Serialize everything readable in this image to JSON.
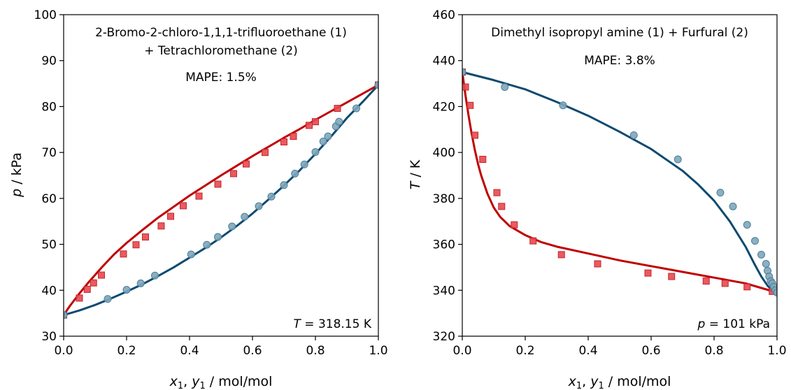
{
  "chart_data": [
    {
      "type": "scatter",
      "panel": "left",
      "title_lines": [
        "2-Bromo-2-chloro-1,1,1-trifluoroethane (1)",
        "+ Tetrachloromethane (2)"
      ],
      "metric": "MAPE: 1.5%",
      "condition": {
        "var": "T",
        "text": " = 318.15 K"
      },
      "xlabel": {
        "a": "x",
        "a_sub": "1",
        "sep": ", ",
        "b": "y",
        "b_sub": "1",
        "unit": " / mol/mol"
      },
      "ylabel": {
        "var": "p",
        "unit": " / kPa"
      },
      "xlim": [
        0,
        1
      ],
      "ylim": [
        30,
        100
      ],
      "xticks": [
        "0.0",
        "0.2",
        "0.4",
        "0.6",
        "0.8",
        "1.0"
      ],
      "yticks": [
        "30",
        "40",
        "50",
        "60",
        "70",
        "80",
        "90",
        "100"
      ],
      "ytick_values": [
        30,
        40,
        50,
        60,
        70,
        80,
        90,
        100
      ],
      "series": [
        {
          "kind": "line",
          "color": "#c00000",
          "x": [
            0,
            0.02,
            0.05,
            0.08,
            0.12,
            0.16,
            0.2,
            0.25,
            0.3,
            0.35,
            0.4,
            0.45,
            0.5,
            0.55,
            0.6,
            0.65,
            0.7,
            0.75,
            0.8,
            0.85,
            0.9,
            0.95,
            1.0
          ],
          "y": [
            34.6,
            36.6,
            39.3,
            41.8,
            44.9,
            47.8,
            50.3,
            53.1,
            55.8,
            58.2,
            60.6,
            62.8,
            65.0,
            67.1,
            69.2,
            71.2,
            73.2,
            75.1,
            77.1,
            79.0,
            80.9,
            82.8,
            84.7
          ]
        },
        {
          "kind": "line",
          "color": "#0d4a70",
          "x": [
            0,
            0.05,
            0.1,
            0.15,
            0.2,
            0.25,
            0.3,
            0.35,
            0.4,
            0.45,
            0.5,
            0.55,
            0.6,
            0.65,
            0.7,
            0.75,
            0.8,
            0.85,
            0.9,
            0.95,
            1.0
          ],
          "y": [
            34.6,
            35.6,
            36.8,
            38.2,
            39.7,
            41.3,
            43.1,
            45.0,
            47.1,
            49.2,
            51.5,
            54.0,
            56.7,
            59.7,
            62.8,
            66.1,
            69.7,
            73.5,
            77.5,
            81.0,
            84.7
          ]
        },
        {
          "kind": "marker",
          "shape": "square",
          "fill": "#e8484f",
          "stroke": "#c0282d",
          "x": [
            0.0,
            0.05,
            0.075,
            0.095,
            0.12,
            0.19,
            0.23,
            0.26,
            0.31,
            0.34,
            0.38,
            0.43,
            0.49,
            0.54,
            0.58,
            0.64,
            0.7,
            0.73,
            0.78,
            0.8,
            0.87,
            1.0
          ],
          "y": [
            34.6,
            38.3,
            40.2,
            41.6,
            43.3,
            47.9,
            49.9,
            51.6,
            54.0,
            56.1,
            58.4,
            60.5,
            63.1,
            65.4,
            67.5,
            70.0,
            72.3,
            73.5,
            75.9,
            76.7,
            79.6,
            84.7
          ]
        },
        {
          "kind": "marker",
          "shape": "circle",
          "fill": "#7fa6ba",
          "stroke": "#4b7f9a",
          "x": [
            0.0,
            0.14,
            0.2,
            0.245,
            0.29,
            0.405,
            0.455,
            0.49,
            0.535,
            0.575,
            0.62,
            0.66,
            0.7,
            0.735,
            0.765,
            0.8,
            0.825,
            0.84,
            0.865,
            0.875,
            0.93,
            1.0
          ],
          "y": [
            34.6,
            38.1,
            40.1,
            41.5,
            43.2,
            47.8,
            49.9,
            51.6,
            53.9,
            56.0,
            58.3,
            60.4,
            62.9,
            65.4,
            67.4,
            70.1,
            72.4,
            73.5,
            75.7,
            76.7,
            79.6,
            84.7
          ]
        }
      ]
    },
    {
      "type": "scatter",
      "panel": "right",
      "title_lines": [
        "Dimethyl isopropyl amine (1) + Furfural (2)"
      ],
      "metric": "MAPE: 3.8%",
      "condition": {
        "var": "p",
        "text": " = 101 kPa"
      },
      "xlabel": {
        "a": "x",
        "a_sub": "1",
        "sep": ", ",
        "b": "y",
        "b_sub": "1",
        "unit": " / mol/mol"
      },
      "ylabel": {
        "var": "T",
        "unit": " / K"
      },
      "xlim": [
        0,
        1
      ],
      "ylim": [
        320,
        460
      ],
      "xticks": [
        "0.0",
        "0.2",
        "0.4",
        "0.6",
        "0.8",
        "1.0"
      ],
      "yticks": [
        "320",
        "340",
        "360",
        "380",
        "400",
        "420",
        "440",
        "460"
      ],
      "ytick_values": [
        320,
        340,
        360,
        380,
        400,
        420,
        440,
        460
      ],
      "series": [
        {
          "kind": "line",
          "color": "#c00000",
          "x": [
            0,
            0.005,
            0.01,
            0.02,
            0.03,
            0.04,
            0.05,
            0.06,
            0.08,
            0.1,
            0.12,
            0.15,
            0.2,
            0.25,
            0.3,
            0.4,
            0.5,
            0.6,
            0.7,
            0.8,
            0.9,
            0.95,
            1.0
          ],
          "y": [
            435,
            430,
            425,
            416,
            408,
            401,
            395,
            390,
            382,
            376,
            372,
            368,
            364,
            361,
            359,
            356,
            353,
            350.5,
            348,
            345.5,
            343,
            341,
            339
          ]
        },
        {
          "kind": "line",
          "color": "#0d4a70",
          "x": [
            0,
            0.1,
            0.2,
            0.3,
            0.4,
            0.5,
            0.6,
            0.7,
            0.75,
            0.8,
            0.85,
            0.9,
            0.93,
            0.95,
            0.97,
            0.98,
            0.99,
            1.0
          ],
          "y": [
            435,
            431.5,
            427.5,
            422,
            416,
            409,
            401.5,
            392,
            386,
            379,
            370,
            359,
            351,
            346,
            342,
            340.5,
            339.5,
            339
          ]
        },
        {
          "kind": "marker",
          "shape": "square",
          "fill": "#e8484f",
          "stroke": "#c0282d",
          "x": [
            0.0,
            0.01,
            0.025,
            0.04,
            0.065,
            0.11,
            0.125,
            0.165,
            0.225,
            0.315,
            0.43,
            0.59,
            0.665,
            0.775,
            0.835,
            0.905,
            0.985
          ],
          "y": [
            435,
            428.5,
            420.5,
            407.5,
            397,
            382.5,
            376.5,
            368.5,
            361.5,
            355.5,
            351.5,
            347.5,
            346,
            344,
            343,
            341.5,
            339.5
          ]
        },
        {
          "kind": "marker",
          "shape": "circle",
          "fill": "#7fa6ba",
          "stroke": "#4b7f9a",
          "x": [
            0.0,
            0.135,
            0.32,
            0.545,
            0.685,
            0.82,
            0.86,
            0.905,
            0.93,
            0.95,
            0.965,
            0.97,
            0.975,
            0.98,
            0.985,
            0.99,
            0.995,
            1.0
          ],
          "y": [
            435,
            428.5,
            420.5,
            407.5,
            397,
            382.5,
            376.5,
            368.5,
            361.5,
            355.5,
            351.5,
            348.5,
            346,
            344,
            343,
            341.5,
            340,
            339
          ]
        }
      ]
    }
  ]
}
